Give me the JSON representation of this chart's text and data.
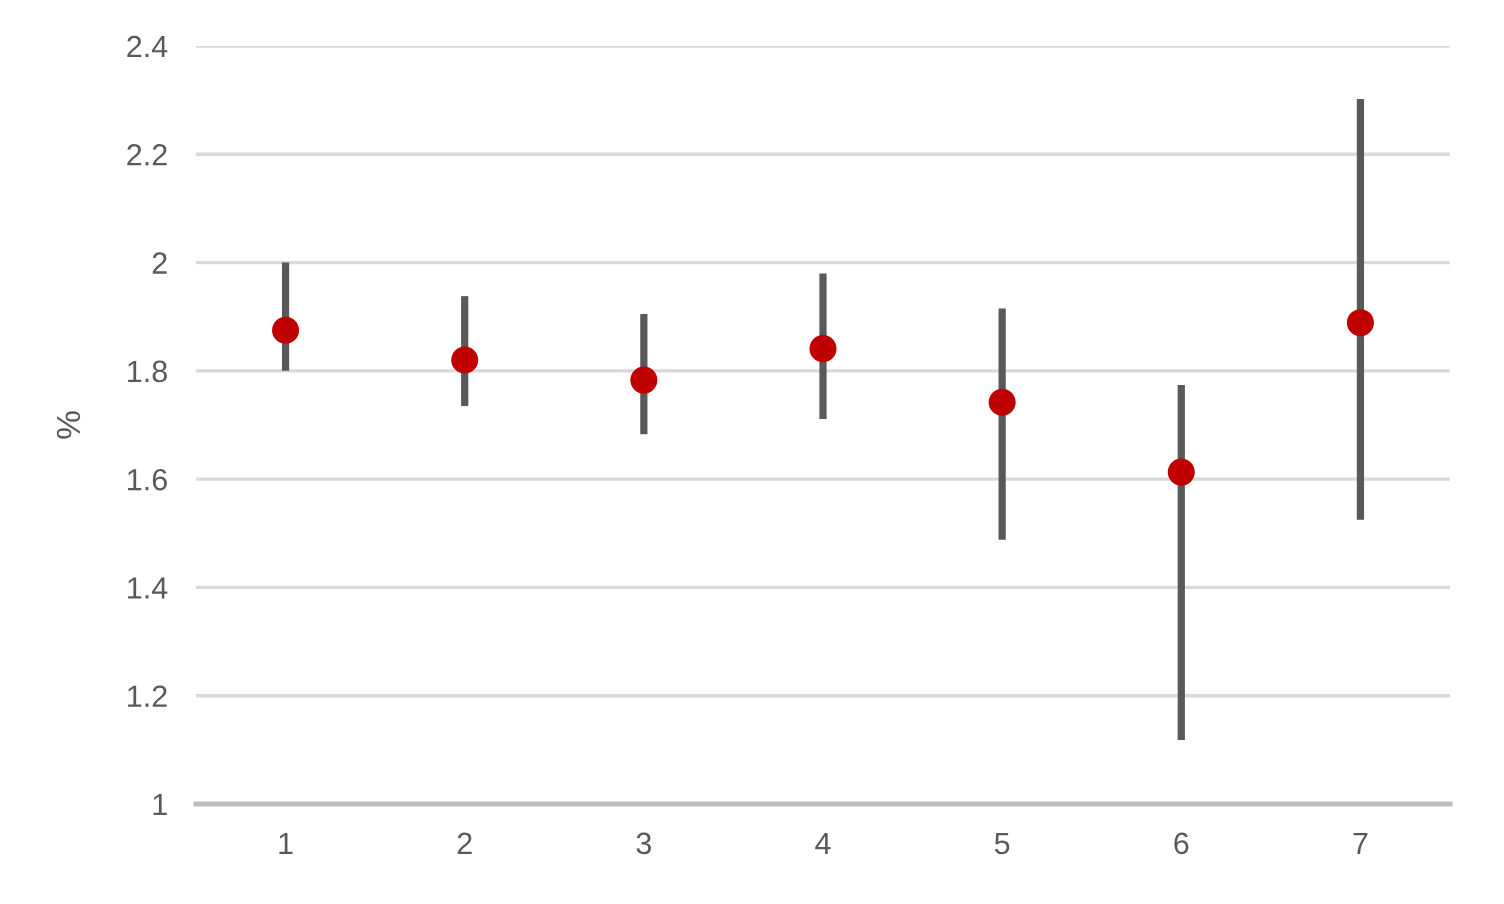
{
  "chart_data": {
    "type": "scatter",
    "ylabel": "%",
    "categories": [
      "1",
      "2",
      "3",
      "4",
      "5",
      "6",
      "7"
    ],
    "series": [
      {
        "color": "#c00000",
        "values": [
          1.875,
          1.82,
          1.783,
          1.841,
          1.742,
          1.613,
          1.889
        ],
        "errors": [
          [
            1.8,
            2.0
          ],
          [
            1.735,
            1.938
          ],
          [
            1.683,
            1.905
          ],
          [
            1.711,
            1.98
          ],
          [
            1.488,
            1.915
          ],
          [
            1.118,
            1.774
          ],
          [
            1.525,
            2.302
          ]
        ]
      }
    ],
    "ylim": [
      1,
      2.4
    ],
    "yticks": [
      1,
      1.2,
      1.4,
      1.6,
      1.8,
      2,
      2.2,
      2.4
    ],
    "grid": "y",
    "marker": "circle"
  }
}
